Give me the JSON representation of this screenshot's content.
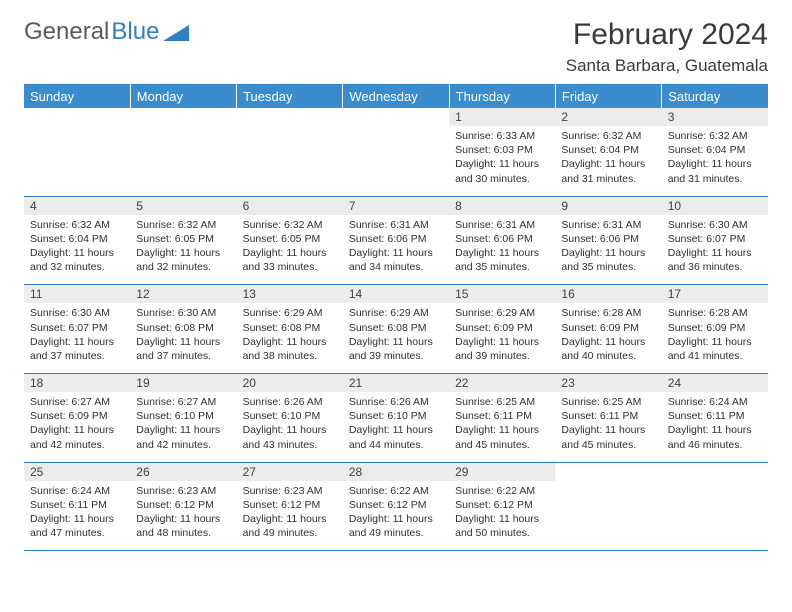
{
  "logo": {
    "text_gray": "General",
    "text_blue": "Blue"
  },
  "title": "February 2024",
  "location": "Santa Barbara, Guatemala",
  "colors": {
    "header_bg": "#3b8ccc",
    "header_text": "#ffffff",
    "border": "#2f7fc2",
    "daynum_bg": "#ececec",
    "text": "#303030",
    "logo_gray": "#5a5a5a",
    "logo_blue": "#2f7fc2"
  },
  "day_labels": [
    "Sunday",
    "Monday",
    "Tuesday",
    "Wednesday",
    "Thursday",
    "Friday",
    "Saturday"
  ],
  "weeks": [
    [
      {
        "n": "",
        "sr": "",
        "ss": "",
        "dl": ""
      },
      {
        "n": "",
        "sr": "",
        "ss": "",
        "dl": ""
      },
      {
        "n": "",
        "sr": "",
        "ss": "",
        "dl": ""
      },
      {
        "n": "",
        "sr": "",
        "ss": "",
        "dl": ""
      },
      {
        "n": "1",
        "sr": "Sunrise: 6:33 AM",
        "ss": "Sunset: 6:03 PM",
        "dl": "Daylight: 11 hours and 30 minutes."
      },
      {
        "n": "2",
        "sr": "Sunrise: 6:32 AM",
        "ss": "Sunset: 6:04 PM",
        "dl": "Daylight: 11 hours and 31 minutes."
      },
      {
        "n": "3",
        "sr": "Sunrise: 6:32 AM",
        "ss": "Sunset: 6:04 PM",
        "dl": "Daylight: 11 hours and 31 minutes."
      }
    ],
    [
      {
        "n": "4",
        "sr": "Sunrise: 6:32 AM",
        "ss": "Sunset: 6:04 PM",
        "dl": "Daylight: 11 hours and 32 minutes."
      },
      {
        "n": "5",
        "sr": "Sunrise: 6:32 AM",
        "ss": "Sunset: 6:05 PM",
        "dl": "Daylight: 11 hours and 32 minutes."
      },
      {
        "n": "6",
        "sr": "Sunrise: 6:32 AM",
        "ss": "Sunset: 6:05 PM",
        "dl": "Daylight: 11 hours and 33 minutes."
      },
      {
        "n": "7",
        "sr": "Sunrise: 6:31 AM",
        "ss": "Sunset: 6:06 PM",
        "dl": "Daylight: 11 hours and 34 minutes."
      },
      {
        "n": "8",
        "sr": "Sunrise: 6:31 AM",
        "ss": "Sunset: 6:06 PM",
        "dl": "Daylight: 11 hours and 35 minutes."
      },
      {
        "n": "9",
        "sr": "Sunrise: 6:31 AM",
        "ss": "Sunset: 6:06 PM",
        "dl": "Daylight: 11 hours and 35 minutes."
      },
      {
        "n": "10",
        "sr": "Sunrise: 6:30 AM",
        "ss": "Sunset: 6:07 PM",
        "dl": "Daylight: 11 hours and 36 minutes."
      }
    ],
    [
      {
        "n": "11",
        "sr": "Sunrise: 6:30 AM",
        "ss": "Sunset: 6:07 PM",
        "dl": "Daylight: 11 hours and 37 minutes."
      },
      {
        "n": "12",
        "sr": "Sunrise: 6:30 AM",
        "ss": "Sunset: 6:08 PM",
        "dl": "Daylight: 11 hours and 37 minutes."
      },
      {
        "n": "13",
        "sr": "Sunrise: 6:29 AM",
        "ss": "Sunset: 6:08 PM",
        "dl": "Daylight: 11 hours and 38 minutes."
      },
      {
        "n": "14",
        "sr": "Sunrise: 6:29 AM",
        "ss": "Sunset: 6:08 PM",
        "dl": "Daylight: 11 hours and 39 minutes."
      },
      {
        "n": "15",
        "sr": "Sunrise: 6:29 AM",
        "ss": "Sunset: 6:09 PM",
        "dl": "Daylight: 11 hours and 39 minutes."
      },
      {
        "n": "16",
        "sr": "Sunrise: 6:28 AM",
        "ss": "Sunset: 6:09 PM",
        "dl": "Daylight: 11 hours and 40 minutes."
      },
      {
        "n": "17",
        "sr": "Sunrise: 6:28 AM",
        "ss": "Sunset: 6:09 PM",
        "dl": "Daylight: 11 hours and 41 minutes."
      }
    ],
    [
      {
        "n": "18",
        "sr": "Sunrise: 6:27 AM",
        "ss": "Sunset: 6:09 PM",
        "dl": "Daylight: 11 hours and 42 minutes."
      },
      {
        "n": "19",
        "sr": "Sunrise: 6:27 AM",
        "ss": "Sunset: 6:10 PM",
        "dl": "Daylight: 11 hours and 42 minutes."
      },
      {
        "n": "20",
        "sr": "Sunrise: 6:26 AM",
        "ss": "Sunset: 6:10 PM",
        "dl": "Daylight: 11 hours and 43 minutes."
      },
      {
        "n": "21",
        "sr": "Sunrise: 6:26 AM",
        "ss": "Sunset: 6:10 PM",
        "dl": "Daylight: 11 hours and 44 minutes."
      },
      {
        "n": "22",
        "sr": "Sunrise: 6:25 AM",
        "ss": "Sunset: 6:11 PM",
        "dl": "Daylight: 11 hours and 45 minutes."
      },
      {
        "n": "23",
        "sr": "Sunrise: 6:25 AM",
        "ss": "Sunset: 6:11 PM",
        "dl": "Daylight: 11 hours and 45 minutes."
      },
      {
        "n": "24",
        "sr": "Sunrise: 6:24 AM",
        "ss": "Sunset: 6:11 PM",
        "dl": "Daylight: 11 hours and 46 minutes."
      }
    ],
    [
      {
        "n": "25",
        "sr": "Sunrise: 6:24 AM",
        "ss": "Sunset: 6:11 PM",
        "dl": "Daylight: 11 hours and 47 minutes."
      },
      {
        "n": "26",
        "sr": "Sunrise: 6:23 AM",
        "ss": "Sunset: 6:12 PM",
        "dl": "Daylight: 11 hours and 48 minutes."
      },
      {
        "n": "27",
        "sr": "Sunrise: 6:23 AM",
        "ss": "Sunset: 6:12 PM",
        "dl": "Daylight: 11 hours and 49 minutes."
      },
      {
        "n": "28",
        "sr": "Sunrise: 6:22 AM",
        "ss": "Sunset: 6:12 PM",
        "dl": "Daylight: 11 hours and 49 minutes."
      },
      {
        "n": "29",
        "sr": "Sunrise: 6:22 AM",
        "ss": "Sunset: 6:12 PM",
        "dl": "Daylight: 11 hours and 50 minutes."
      },
      {
        "n": "",
        "sr": "",
        "ss": "",
        "dl": ""
      },
      {
        "n": "",
        "sr": "",
        "ss": "",
        "dl": ""
      }
    ]
  ]
}
